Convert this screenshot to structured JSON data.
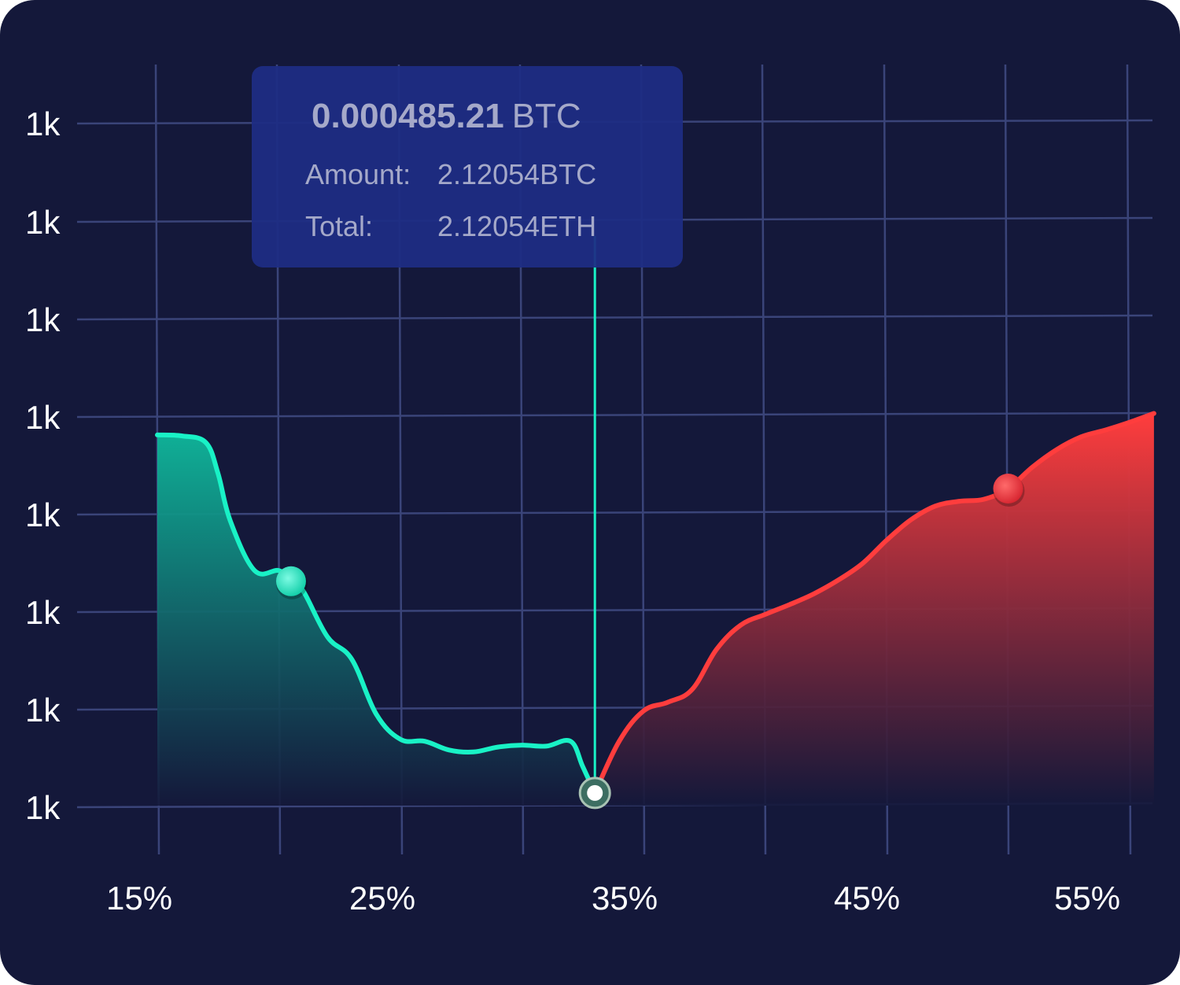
{
  "chart_data": {
    "type": "area",
    "title": "",
    "xlabel": "",
    "ylabel": "",
    "x_tick_labels": [
      "15%",
      "25%",
      "35%",
      "45%",
      "55%"
    ],
    "y_tick_labels": [
      "1k",
      "1k",
      "1k",
      "1k",
      "1k",
      "1k",
      "1k",
      "1k"
    ],
    "xlim": [
      15,
      56
    ],
    "grid": true,
    "legend": "none",
    "series": [
      {
        "side": "buy",
        "color": "#19f2c6",
        "x": [
          15.0,
          16.0,
          17.0,
          17.5,
          18.0,
          19.0,
          20.0,
          20.5,
          21.0,
          22.0,
          23.0,
          24.0,
          25.0,
          26.0,
          27.0,
          28.0,
          29.0,
          30.0,
          31.0,
          32.0,
          32.5,
          33.0
        ],
        "y": [
          3.8,
          3.79,
          3.72,
          3.4,
          2.92,
          2.41,
          2.41,
          2.3,
          2.2,
          1.73,
          1.5,
          0.94,
          0.68,
          0.66,
          0.57,
          0.55,
          0.6,
          0.62,
          0.61,
          0.66,
          0.4,
          0.13
        ],
        "marker_x": 20.5
      },
      {
        "side": "sell",
        "color": "#ff3d3d",
        "x": [
          33.0,
          34.0,
          35.0,
          36.0,
          37.0,
          38.0,
          39.0,
          40.0,
          41.0,
          42.0,
          43.0,
          44.0,
          45.0,
          46.0,
          47.0,
          48.0,
          49.0,
          50.0,
          51.0,
          52.0,
          53.0,
          54.0,
          55.0,
          56.0
        ],
        "y": [
          0.13,
          0.66,
          0.97,
          1.06,
          1.19,
          1.6,
          1.85,
          1.96,
          2.06,
          2.17,
          2.31,
          2.48,
          2.72,
          2.93,
          3.07,
          3.12,
          3.14,
          3.25,
          3.47,
          3.65,
          3.78,
          3.85,
          3.93,
          4.02
        ],
        "marker_x": 50.0
      }
    ],
    "selected": {
      "x": 33.0,
      "y": 0.13
    },
    "tooltip": {
      "price": "0.000485.21",
      "price_unit": "BTC",
      "rows": [
        {
          "label": "Amount:",
          "value": "2.12054BTC"
        },
        {
          "label": "Total:",
          "value": "2.12054ETH"
        }
      ]
    }
  }
}
